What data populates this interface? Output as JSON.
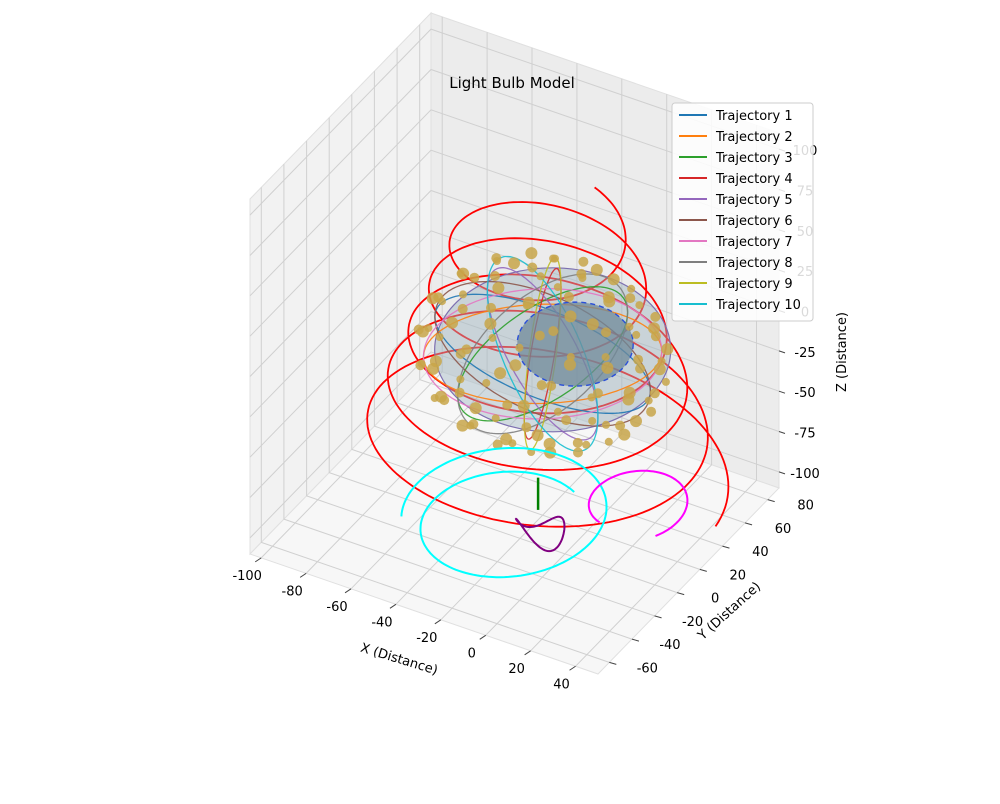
{
  "chart_data": {
    "type": "line",
    "title": "Light Bulb Model",
    "xlabel": "X (Distance)",
    "ylabel": "Y (Distance)",
    "zlabel": "Z (Distance)",
    "xlim": [
      -105,
      50
    ],
    "ylim": [
      -70,
      90
    ],
    "zlim": [
      -110,
      110
    ],
    "xticks": [
      -100,
      -80,
      -60,
      -40,
      -20,
      0,
      20,
      40
    ],
    "yticks": [
      -60,
      -40,
      -20,
      0,
      20,
      40,
      60,
      80
    ],
    "zticks": [
      -100,
      -75,
      -50,
      -25,
      0,
      25,
      50,
      75,
      100
    ],
    "grid": true,
    "legend_position": "top-right",
    "series": [
      {
        "name": "Trajectory 1",
        "color": "#1f77b4"
      },
      {
        "name": "Trajectory 2",
        "color": "#ff7f0e"
      },
      {
        "name": "Trajectory 3",
        "color": "#2ca02c"
      },
      {
        "name": "Trajectory 4",
        "color": "#d62728"
      },
      {
        "name": "Trajectory 5",
        "color": "#9467bd"
      },
      {
        "name": "Trajectory 6",
        "color": "#8c564b"
      },
      {
        "name": "Trajectory 7",
        "color": "#e377c2"
      },
      {
        "name": "Trajectory 8",
        "color": "#7f7f7f"
      },
      {
        "name": "Trajectory 9",
        "color": "#bcbd22"
      },
      {
        "name": "Trajectory 10",
        "color": "#17becf"
      }
    ],
    "extra_traces": [
      {
        "color": "#ff0000",
        "kind": "spiral"
      },
      {
        "color": "#00ffff",
        "kind": "spiral"
      },
      {
        "color": "#ff00ff",
        "kind": "spiral"
      },
      {
        "color": "#800080",
        "kind": "spiral"
      },
      {
        "color": "#008000",
        "kind": "line"
      }
    ],
    "bulb": {
      "outer_radius": 50,
      "inner_radius": 25,
      "outer_color": "#9fb6c2",
      "inner_color": "#6f8a9a",
      "particle_color": "#c8a64a"
    }
  }
}
